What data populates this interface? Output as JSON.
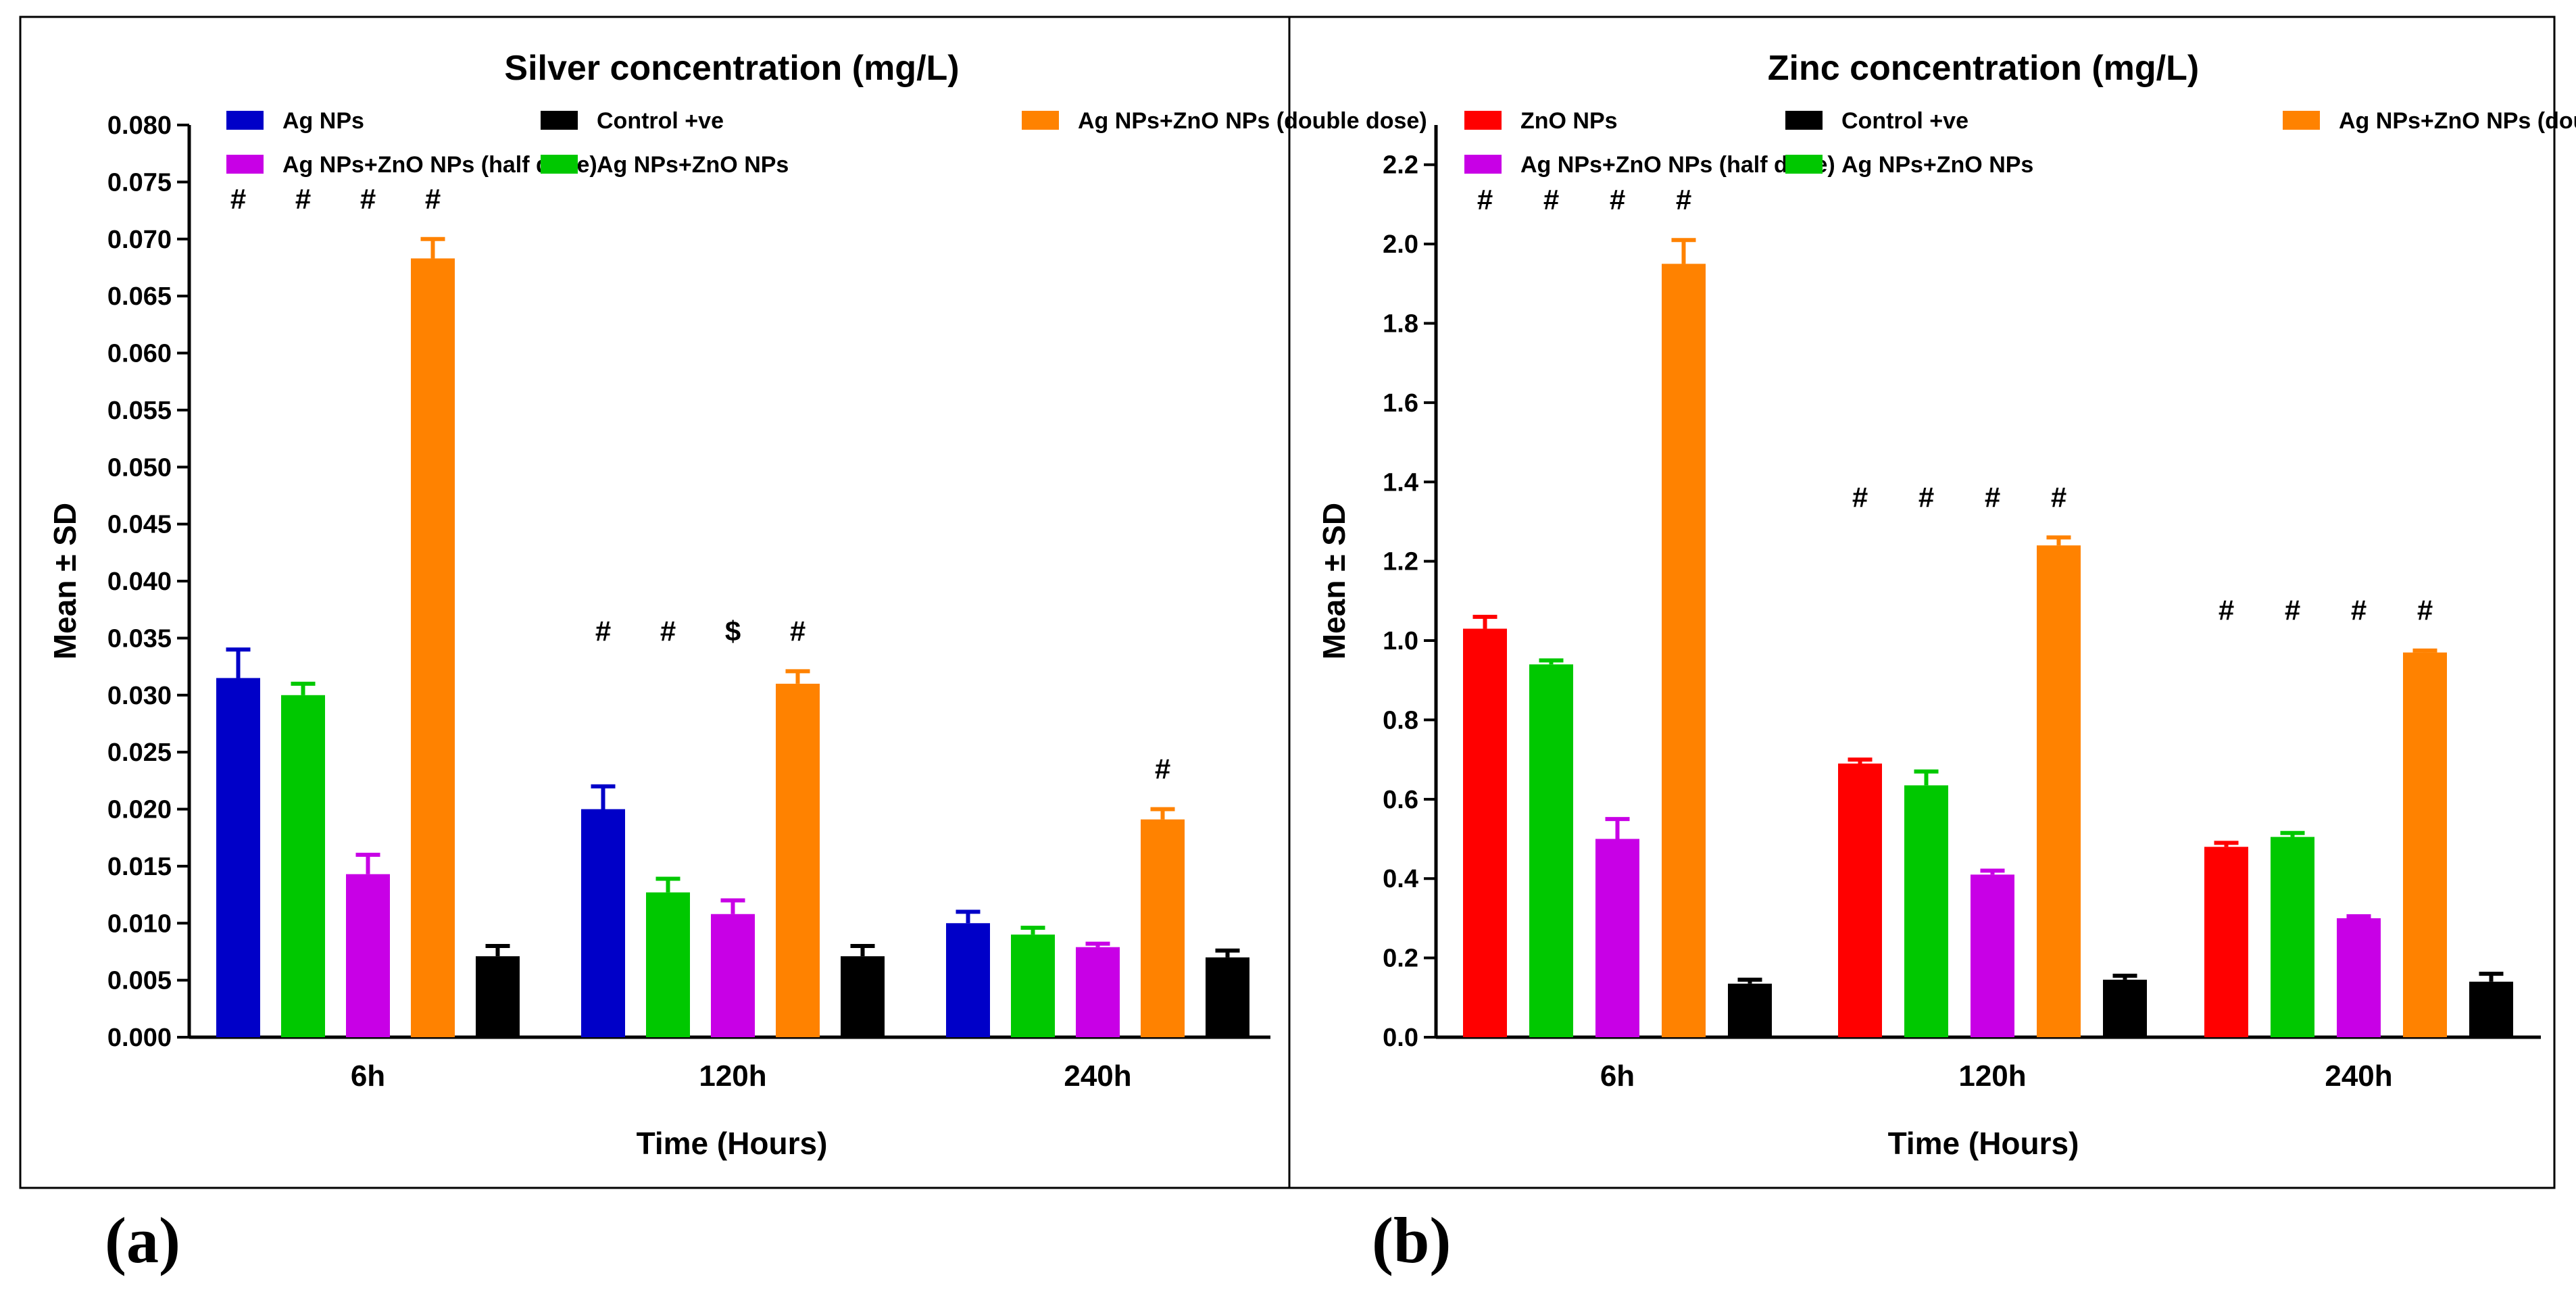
{
  "chart_data": [
    {
      "type": "bar",
      "panel_label": "(a)",
      "title": "Silver concentration (mg/L)",
      "xlabel": "Time (Hours)",
      "ylabel": "Mean ± SD",
      "ylim": [
        0,
        0.08
      ],
      "yticks": [
        "0.000",
        "0.005",
        "0.010",
        "0.015",
        "0.020",
        "0.025",
        "0.030",
        "0.035",
        "0.040",
        "0.045",
        "0.050",
        "0.055",
        "0.060",
        "0.065",
        "0.070",
        "0.075",
        "0.080"
      ],
      "categories": [
        "6h",
        "120h",
        "240h"
      ],
      "legend_order": [
        0,
        2,
        4,
        1,
        3
      ],
      "series": [
        {
          "name": "Ag NPs",
          "color": "#0000c8",
          "values": [
            0.0315,
            0.02,
            0.01
          ],
          "errors": [
            0.0025,
            0.002,
            0.001
          ],
          "annotations": [
            "#",
            "#",
            ""
          ]
        },
        {
          "name": "Ag NPs+ZnO NPs",
          "color": "#00c800",
          "values": [
            0.03,
            0.0127,
            0.009
          ],
          "errors": [
            0.001,
            0.0012,
            0.0006
          ],
          "annotations": [
            "#",
            "#",
            ""
          ]
        },
        {
          "name": "Ag NPs+ZnO NPs (half dose)",
          "color": "#c800e6",
          "values": [
            0.0143,
            0.0108,
            0.0079
          ],
          "errors": [
            0.0017,
            0.0012,
            0.0003
          ],
          "annotations": [
            "#",
            "$",
            ""
          ]
        },
        {
          "name": "Ag NPs+ZnO NPs (double dose)",
          "color": "#ff8200",
          "values": [
            0.0683,
            0.031,
            0.0191
          ],
          "errors": [
            0.0017,
            0.0011,
            0.0009
          ],
          "annotations": [
            "#",
            "#",
            "#"
          ]
        },
        {
          "name": "Control +ve",
          "color": "#000000",
          "values": [
            0.0071,
            0.0071,
            0.007
          ],
          "errors": [
            0.0009,
            0.0009,
            0.0006
          ],
          "annotations": [
            "",
            "",
            ""
          ]
        }
      ]
    },
    {
      "type": "bar",
      "panel_label": "(b)",
      "title": "Zinc concentration (mg/L)",
      "xlabel": "Time (Hours)",
      "ylabel": "Mean ± SD",
      "ylim": [
        0,
        2.3
      ],
      "yticks": [
        "0.0",
        "0.2",
        "0.4",
        "0.6",
        "0.8",
        "1.0",
        "1.2",
        "1.4",
        "1.6",
        "1.8",
        "2.0",
        "2.2"
      ],
      "categories": [
        "6h",
        "120h",
        "240h"
      ],
      "legend_order": [
        0,
        2,
        4,
        1,
        3
      ],
      "series": [
        {
          "name": "ZnO NPs",
          "color": "#ff0000",
          "values": [
            1.03,
            0.69,
            0.48
          ],
          "errors": [
            0.03,
            0.01,
            0.01
          ],
          "annotations": [
            "#",
            "#",
            "#"
          ]
        },
        {
          "name": "Ag NPs+ZnO NPs",
          "color": "#00c800",
          "values": [
            0.94,
            0.635,
            0.505
          ],
          "errors": [
            0.01,
            0.035,
            0.01
          ],
          "annotations": [
            "#",
            "#",
            "#"
          ]
        },
        {
          "name": "Ag NPs+ZnO NPs (half dose)",
          "color": "#c800e6",
          "values": [
            0.5,
            0.41,
            0.3
          ],
          "errors": [
            0.05,
            0.01,
            0.005
          ],
          "annotations": [
            "#",
            "#",
            "#"
          ]
        },
        {
          "name": "Ag NPs+ZnO NPs (double dose)",
          "color": "#ff8200",
          "values": [
            1.95,
            1.24,
            0.97
          ],
          "errors": [
            0.06,
            0.02,
            0.005
          ],
          "annotations": [
            "#",
            "#",
            "#"
          ]
        },
        {
          "name": "Control +ve",
          "color": "#000000",
          "values": [
            0.135,
            0.145,
            0.14
          ],
          "errors": [
            0.01,
            0.01,
            0.02
          ],
          "annotations": [
            "",
            "",
            ""
          ]
        }
      ]
    }
  ]
}
